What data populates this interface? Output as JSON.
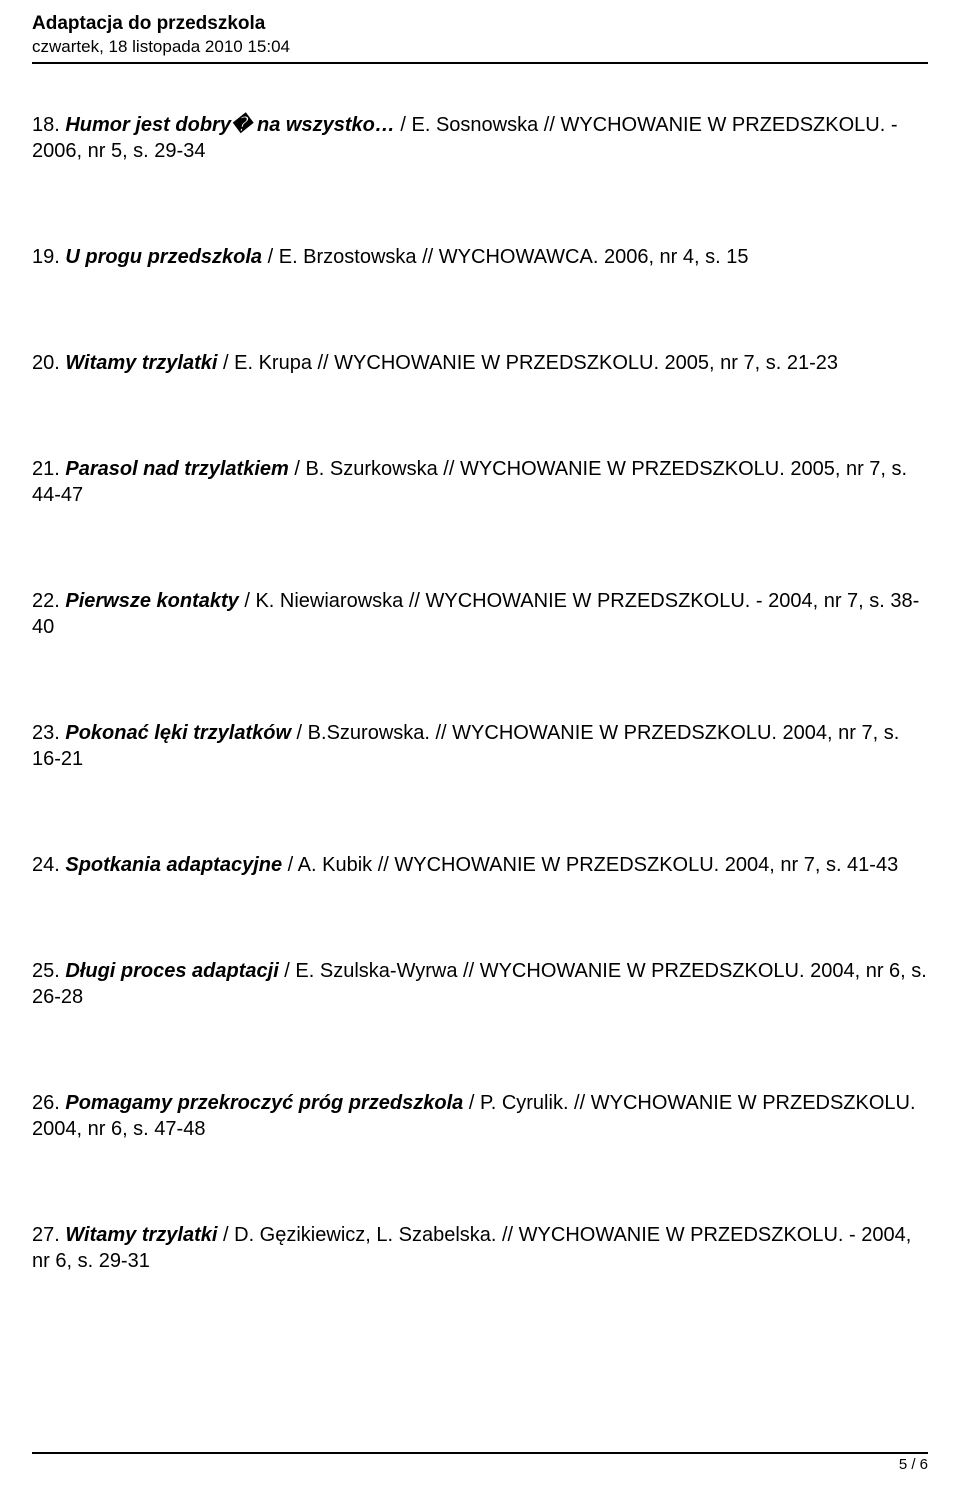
{
  "header": {
    "title": "Adaptacja do przedszkola",
    "subtitle": "czwartek, 18 listopada 2010 15:04"
  },
  "entries": [
    {
      "num": "  18. ",
      "title": "Humor jest dobry� na wszystko…",
      "rest": " / E. Sosnowska //  WYCHOWANIE W PRZEDSZKOLU.  -  2006, nr 5,  s. 29-34"
    },
    {
      "num": "  19. ",
      "title": "U progu przedszkola",
      "rest": " / E. Brzostowska  // WYCHOWAWCA. 2006, nr 4,  s. 15"
    },
    {
      "num": "  20. ",
      "title": "Witamy trzylatki",
      "rest": " / E. Krupa // WYCHOWANIE W PRZEDSZKOLU. 2005,  nr 7,  s. 21-23"
    },
    {
      "num": "  21. ",
      "title": "Parasol nad trzylatkiem",
      "rest": " / B. Szurkowska // WYCHOWANIE W PRZEDSZKOLU. 2005,  nr 7,  s. 44-47"
    },
    {
      "num": "  22. ",
      "title": "Pierwsze kontakty",
      "rest": " / K. Niewiarowska // WYCHOWANIE W  PRZEDSZKOLU.  -  2004, nr 7,  s. 38-40"
    },
    {
      "num": "  23. ",
      "title": "Pokonać lęki trzylatków",
      "rest": " / B.Szurowska. // WYCHOWANIE W PRZEDSZKOLU. 2004, nr 7, s. 16-21"
    },
    {
      "num": "  24. ",
      "title": "Spotkania adaptacyjne",
      "rest": " / A. Kubik // WYCHOWANIE W PRZEDSZKOLU. 2004, nr 7, s. 41-43"
    },
    {
      "num": "  25. ",
      "title": "Długi proces adaptacji",
      "rest": " / E. Szulska-Wyrwa // WYCHOWANIE W PRZEDSZKOLU. 2004, nr 6, s. 26-28"
    },
    {
      "num": "  26. ",
      "title": "Pomagamy przekroczyć próg przedszkola",
      "rest": " / P. Cyrulik. // WYCHOWANIE  W PRZEDSZKOLU. 2004, nr 6,  s. 47-48"
    },
    {
      "num": "  27. ",
      "title": "Witamy trzylatki",
      "rest": " / D. Gęzikiewicz, L. Szabelska. // WYCHOWANIE W PRZEDSZKOLU. - 2004, nr 6, s. 29-31"
    }
  ],
  "footer": {
    "page": "5 / 6"
  }
}
